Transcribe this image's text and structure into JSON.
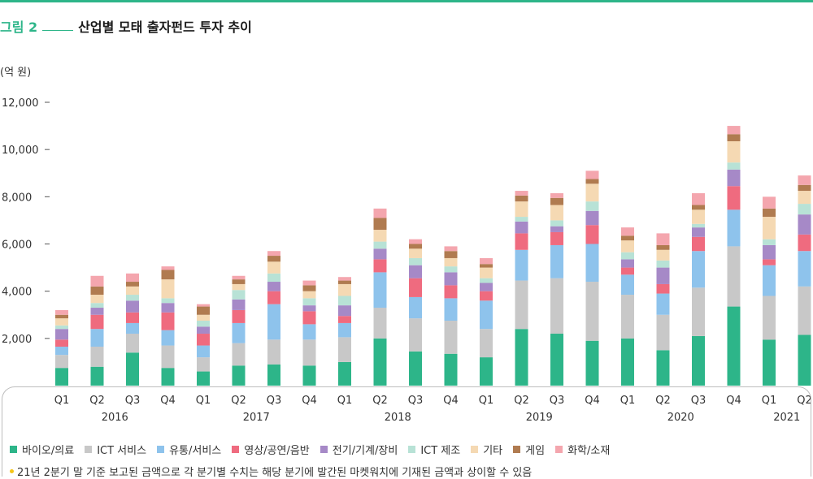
{
  "header": {
    "figure_label": "그림 2",
    "title": "산업별 모태 출자펀드 투자 추이",
    "unit": "(억 원)"
  },
  "note": "21년 2분기 말 기준 보고된 금액으로 각 분기별 수치는 해당 분기에 발간된 마켓워치에 기재된 금액과 상이할 수 있음",
  "chart_data": {
    "type": "bar",
    "stacked": true,
    "title": "산업별 모태 출자펀드 투자 추이",
    "ylabel": "(억 원)",
    "ylim": [
      0,
      12000
    ],
    "yticks": [
      2000,
      4000,
      6000,
      8000,
      10000,
      12000
    ],
    "ytick_labels": [
      "2,000",
      "4,000",
      "6,000",
      "8,000",
      "10,000",
      "12,000"
    ],
    "grid": false,
    "legend_position": "bottom",
    "categories": [
      "Q1",
      "Q2",
      "Q3",
      "Q4",
      "Q1",
      "Q2",
      "Q3",
      "Q4",
      "Q1",
      "Q2",
      "Q3",
      "Q4",
      "Q1",
      "Q2",
      "Q3",
      "Q4",
      "Q1",
      "Q2",
      "Q3",
      "Q4",
      "Q1",
      "Q2"
    ],
    "groups": [
      {
        "label": "2016",
        "start": 0,
        "end": 3
      },
      {
        "label": "2017",
        "start": 4,
        "end": 7
      },
      {
        "label": "2018",
        "start": 8,
        "end": 11
      },
      {
        "label": "2019",
        "start": 12,
        "end": 15
      },
      {
        "label": "2020",
        "start": 16,
        "end": 19
      },
      {
        "label": "2021",
        "start": 20,
        "end": 21
      }
    ],
    "series": [
      {
        "name": "바이오/의료",
        "color": "#2db589",
        "values": [
          750,
          800,
          1400,
          750,
          600,
          850,
          900,
          850,
          1000,
          2000,
          1450,
          1350,
          1200,
          2400,
          2200,
          1900,
          2000,
          1500,
          2100,
          3350,
          1950,
          2150
        ]
      },
      {
        "name": "ICT 서비스",
        "color": "#c8c8c8",
        "values": [
          550,
          850,
          800,
          950,
          600,
          950,
          1050,
          1100,
          1050,
          1300,
          1400,
          1400,
          1200,
          2050,
          2350,
          2500,
          1850,
          1500,
          2050,
          2550,
          1850,
          2050
        ]
      },
      {
        "name": "유통/서비스",
        "color": "#8ec3ec",
        "values": [
          350,
          750,
          450,
          650,
          500,
          850,
          1500,
          650,
          600,
          1500,
          900,
          950,
          1200,
          1300,
          1400,
          1600,
          850,
          900,
          1550,
          1550,
          1300,
          1500
        ]
      },
      {
        "name": "영상/공연/음반",
        "color": "#ef6b7f",
        "values": [
          300,
          600,
          450,
          750,
          500,
          550,
          550,
          550,
          300,
          550,
          800,
          550,
          400,
          700,
          550,
          800,
          300,
          400,
          600,
          1000,
          250,
          700
        ]
      },
      {
        "name": "전기/기계/장비",
        "color": "#a689c7",
        "values": [
          450,
          300,
          500,
          400,
          300,
          450,
          400,
          250,
          450,
          450,
          550,
          550,
          350,
          500,
          250,
          600,
          350,
          700,
          400,
          700,
          600,
          850
        ]
      },
      {
        "name": "ICT 제조",
        "color": "#b8e2d6",
        "values": [
          150,
          200,
          250,
          200,
          250,
          400,
          350,
          300,
          400,
          300,
          300,
          250,
          200,
          200,
          250,
          400,
          300,
          300,
          150,
          300,
          250,
          450
        ]
      },
      {
        "name": "기타",
        "color": "#f5d9b3",
        "values": [
          300,
          350,
          350,
          800,
          250,
          250,
          500,
          300,
          500,
          500,
          400,
          350,
          450,
          650,
          650,
          750,
          500,
          450,
          600,
          900,
          950,
          550
        ]
      },
      {
        "name": "게임",
        "color": "#b07b50",
        "values": [
          150,
          350,
          200,
          400,
          350,
          200,
          250,
          250,
          150,
          500,
          200,
          300,
          150,
          250,
          300,
          200,
          200,
          200,
          200,
          300,
          350,
          250
        ]
      },
      {
        "name": "화학/소재",
        "color": "#f4a6ae",
        "values": [
          200,
          450,
          350,
          150,
          100,
          150,
          200,
          200,
          150,
          400,
          200,
          200,
          250,
          200,
          200,
          350,
          350,
          500,
          500,
          350,
          500,
          400
        ]
      }
    ]
  }
}
